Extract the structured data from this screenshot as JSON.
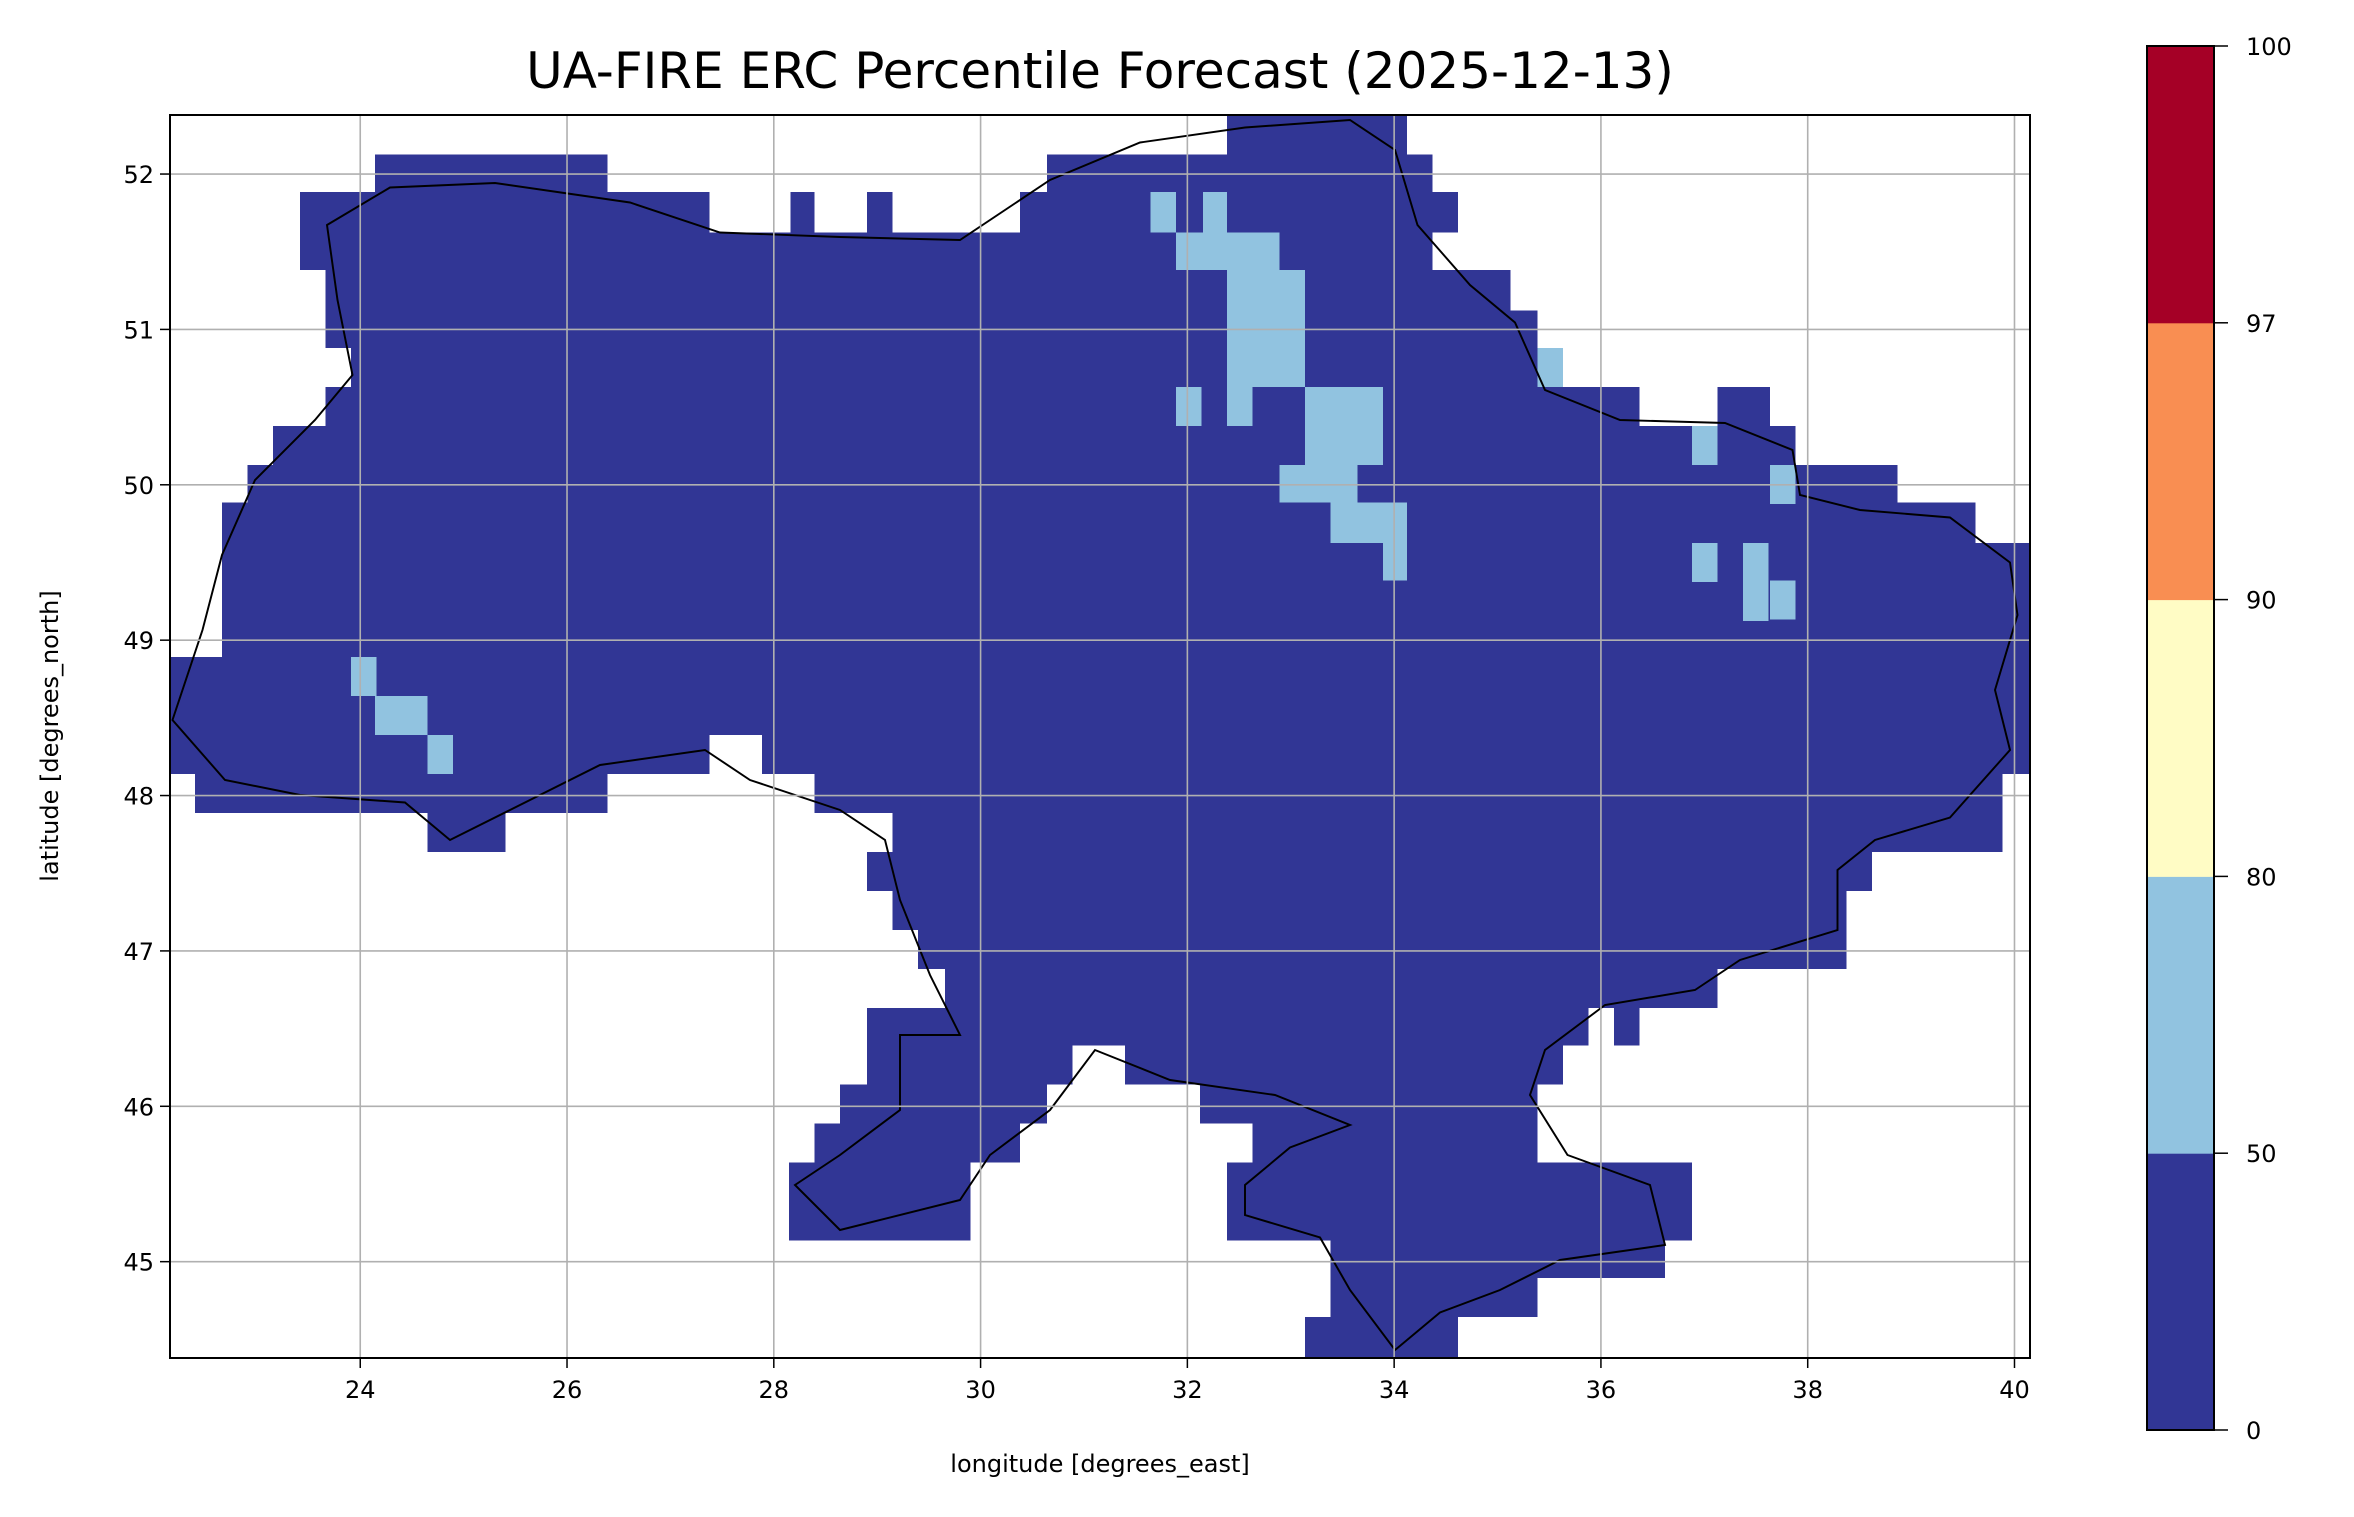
{
  "chart_data": {
    "type": "heatmap",
    "title": "UA-FIRE ERC Percentile Forecast (2025-12-13)",
    "xlabel": "longitude [degrees_east]",
    "ylabel": "latitude [degrees_north]",
    "xlim": [
      22.16,
      40.15
    ],
    "ylim": [
      44.38,
      52.38
    ],
    "xticks": [
      "24",
      "26",
      "28",
      "30",
      "32",
      "34",
      "36",
      "38",
      "40"
    ],
    "yticks": [
      "45",
      "46",
      "47",
      "48",
      "49",
      "50",
      "51",
      "52"
    ],
    "grid": true,
    "colorbar": {
      "ticks": [
        "0",
        "50",
        "80",
        "90",
        "97",
        "100"
      ],
      "bins": [
        {
          "range": [
            0,
            50
          ],
          "color": "#313695"
        },
        {
          "range": [
            50,
            80
          ],
          "color": "#91c3e0"
        },
        {
          "range": [
            80,
            90
          ],
          "color": "#fffcc5"
        },
        {
          "range": [
            90,
            97
          ],
          "color": "#f98e52"
        },
        {
          "range": [
            97,
            100
          ],
          "color": "#a50026"
        }
      ]
    },
    "dominant_bin": "0-50",
    "elevated_bin_50_80_regions": [
      "north-central (around 32.5-34 E, 49.5-51.6 N)",
      "north-east (around 35.5-37.7 E, 49.2-50.8 N)",
      "south-west (around 24-24.8 E, 48.2-48.7 N)"
    ]
  }
}
